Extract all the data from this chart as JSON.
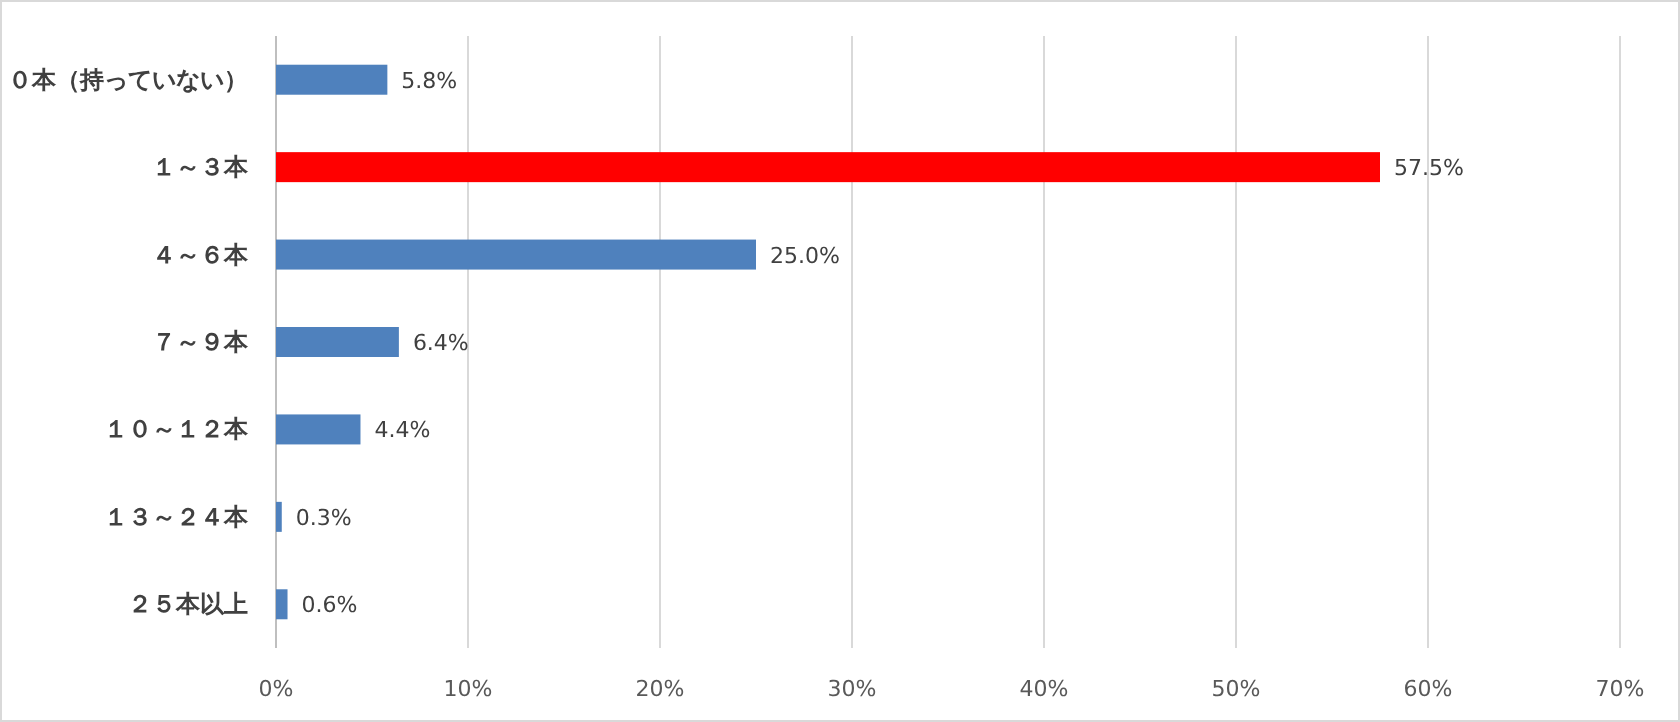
{
  "chart_data": {
    "type": "bar",
    "orientation": "horizontal",
    "categories": [
      "０本（持っていない）",
      "１～３本",
      "４～６本",
      "７～９本",
      "１０～１２本",
      "１３～２４本",
      "２５本以上"
    ],
    "values": [
      5.8,
      57.5,
      25.0,
      6.4,
      4.4,
      0.3,
      0.6
    ],
    "colors": [
      "#4f81bd",
      "#ff0000",
      "#4f81bd",
      "#4f81bd",
      "#4f81bd",
      "#4f81bd",
      "#4f81bd"
    ],
    "value_labels": [
      "5.8%",
      "57.5%",
      "25.0%",
      "6.4%",
      "4.4%",
      "0.3%",
      "0.6%"
    ],
    "xlim": [
      0,
      70
    ],
    "xticks": [
      {
        "value": 0,
        "label": "0%"
      },
      {
        "value": 10,
        "label": "10%"
      },
      {
        "value": 20,
        "label": "20%"
      },
      {
        "value": 30,
        "label": "30%"
      },
      {
        "value": 40,
        "label": "40%"
      },
      {
        "value": 50,
        "label": "50%"
      },
      {
        "value": 60,
        "label": "60%"
      },
      {
        "value": 70,
        "label": "70%"
      }
    ],
    "grid": "x"
  }
}
